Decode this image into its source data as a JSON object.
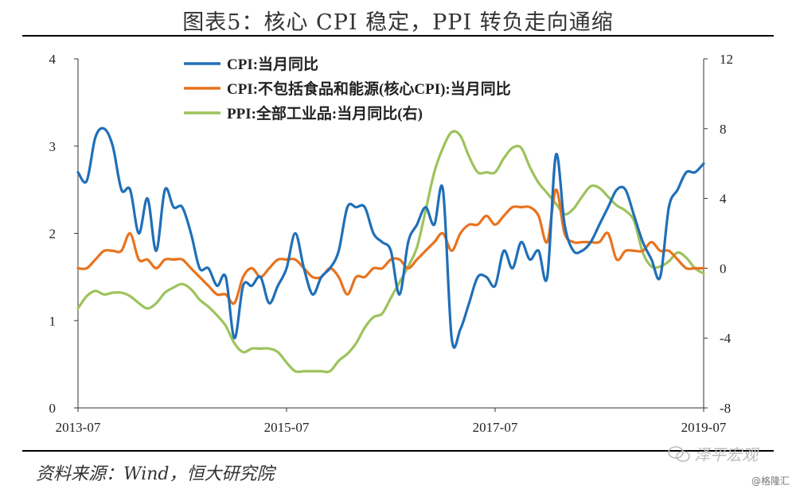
{
  "page": {
    "title": "图表5：核心 CPI 稳定，PPI 转负走向通缩",
    "source": "资料来源：Wind，恒大研究院",
    "watermark": "泽平宏观",
    "corner_mark": "@格隆汇"
  },
  "chart_data": {
    "type": "line",
    "x_tick_labels": [
      "2013-07",
      "2015-07",
      "2017-07",
      "2019-07"
    ],
    "y_left": {
      "range": [
        0,
        4
      ],
      "ticks": [
        "0",
        "1",
        "2",
        "3",
        "4"
      ]
    },
    "y_right": {
      "range": [
        -8,
        12
      ],
      "ticks": [
        "-8",
        "-4",
        "0",
        "4",
        "8",
        "12"
      ]
    },
    "x_range": [
      "2013-07",
      "2019-07"
    ],
    "legend_position": "top-left",
    "grid": false,
    "series": [
      {
        "name": "CPI:当月同比",
        "axis": "left",
        "color": "#1f6fb8",
        "points": [
          [
            "2013-07",
            2.7
          ],
          [
            "2013-08",
            2.6
          ],
          [
            "2013-09",
            3.1
          ],
          [
            "2013-10",
            3.2
          ],
          [
            "2013-11",
            3.0
          ],
          [
            "2013-12",
            2.5
          ],
          [
            "2014-01",
            2.5
          ],
          [
            "2014-02",
            2.0
          ],
          [
            "2014-03",
            2.4
          ],
          [
            "2014-04",
            1.8
          ],
          [
            "2014-05",
            2.5
          ],
          [
            "2014-06",
            2.3
          ],
          [
            "2014-07",
            2.3
          ],
          [
            "2014-08",
            2.0
          ],
          [
            "2014-09",
            1.6
          ],
          [
            "2014-10",
            1.6
          ],
          [
            "2014-11",
            1.4
          ],
          [
            "2014-12",
            1.5
          ],
          [
            "2015-01",
            0.8
          ],
          [
            "2015-02",
            1.4
          ],
          [
            "2015-03",
            1.4
          ],
          [
            "2015-04",
            1.5
          ],
          [
            "2015-05",
            1.2
          ],
          [
            "2015-06",
            1.4
          ],
          [
            "2015-07",
            1.6
          ],
          [
            "2015-08",
            2.0
          ],
          [
            "2015-09",
            1.6
          ],
          [
            "2015-10",
            1.3
          ],
          [
            "2015-11",
            1.5
          ],
          [
            "2015-12",
            1.6
          ],
          [
            "2016-01",
            1.8
          ],
          [
            "2016-02",
            2.3
          ],
          [
            "2016-03",
            2.3
          ],
          [
            "2016-04",
            2.3
          ],
          [
            "2016-05",
            2.0
          ],
          [
            "2016-06",
            1.9
          ],
          [
            "2016-07",
            1.8
          ],
          [
            "2016-08",
            1.3
          ],
          [
            "2016-09",
            1.9
          ],
          [
            "2016-10",
            2.1
          ],
          [
            "2016-11",
            2.3
          ],
          [
            "2016-12",
            2.1
          ],
          [
            "2017-01",
            2.5
          ],
          [
            "2017-02",
            0.8
          ],
          [
            "2017-03",
            0.9
          ],
          [
            "2017-04",
            1.2
          ],
          [
            "2017-05",
            1.5
          ],
          [
            "2017-06",
            1.5
          ],
          [
            "2017-07",
            1.4
          ],
          [
            "2017-08",
            1.8
          ],
          [
            "2017-09",
            1.6
          ],
          [
            "2017-10",
            1.9
          ],
          [
            "2017-11",
            1.7
          ],
          [
            "2017-12",
            1.8
          ],
          [
            "2018-01",
            1.5
          ],
          [
            "2018-02",
            2.9
          ],
          [
            "2018-03",
            2.1
          ],
          [
            "2018-04",
            1.8
          ],
          [
            "2018-05",
            1.8
          ],
          [
            "2018-06",
            1.9
          ],
          [
            "2018-07",
            2.1
          ],
          [
            "2018-08",
            2.3
          ],
          [
            "2018-09",
            2.5
          ],
          [
            "2018-10",
            2.5
          ],
          [
            "2018-11",
            2.2
          ],
          [
            "2018-12",
            1.9
          ],
          [
            "2019-01",
            1.7
          ],
          [
            "2019-02",
            1.5
          ],
          [
            "2019-03",
            2.3
          ],
          [
            "2019-04",
            2.5
          ],
          [
            "2019-05",
            2.7
          ],
          [
            "2019-06",
            2.7
          ],
          [
            "2019-07",
            2.8
          ]
        ]
      },
      {
        "name": "CPI:不包括食品和能源(核心CPI):当月同比",
        "axis": "left",
        "color": "#e8731e",
        "points": [
          [
            "2013-07",
            1.6
          ],
          [
            "2013-08",
            1.6
          ],
          [
            "2013-09",
            1.7
          ],
          [
            "2013-10",
            1.8
          ],
          [
            "2013-11",
            1.8
          ],
          [
            "2013-12",
            1.8
          ],
          [
            "2014-01",
            2.0
          ],
          [
            "2014-02",
            1.7
          ],
          [
            "2014-03",
            1.7
          ],
          [
            "2014-04",
            1.6
          ],
          [
            "2014-05",
            1.7
          ],
          [
            "2014-06",
            1.7
          ],
          [
            "2014-07",
            1.7
          ],
          [
            "2014-08",
            1.6
          ],
          [
            "2014-09",
            1.5
          ],
          [
            "2014-10",
            1.4
          ],
          [
            "2014-11",
            1.3
          ],
          [
            "2014-12",
            1.3
          ],
          [
            "2015-01",
            1.2
          ],
          [
            "2015-02",
            1.5
          ],
          [
            "2015-03",
            1.6
          ],
          [
            "2015-04",
            1.5
          ],
          [
            "2015-05",
            1.6
          ],
          [
            "2015-06",
            1.7
          ],
          [
            "2015-07",
            1.7
          ],
          [
            "2015-08",
            1.7
          ],
          [
            "2015-09",
            1.6
          ],
          [
            "2015-10",
            1.5
          ],
          [
            "2015-11",
            1.5
          ],
          [
            "2015-12",
            1.6
          ],
          [
            "2016-01",
            1.5
          ],
          [
            "2016-02",
            1.3
          ],
          [
            "2016-03",
            1.5
          ],
          [
            "2016-04",
            1.5
          ],
          [
            "2016-05",
            1.6
          ],
          [
            "2016-06",
            1.6
          ],
          [
            "2016-07",
            1.7
          ],
          [
            "2016-08",
            1.7
          ],
          [
            "2016-09",
            1.6
          ],
          [
            "2016-10",
            1.7
          ],
          [
            "2016-11",
            1.8
          ],
          [
            "2016-12",
            1.9
          ],
          [
            "2017-01",
            2.0
          ],
          [
            "2017-02",
            1.8
          ],
          [
            "2017-03",
            2.0
          ],
          [
            "2017-04",
            2.1
          ],
          [
            "2017-05",
            2.1
          ],
          [
            "2017-06",
            2.2
          ],
          [
            "2017-07",
            2.1
          ],
          [
            "2017-08",
            2.2
          ],
          [
            "2017-09",
            2.3
          ],
          [
            "2017-10",
            2.3
          ],
          [
            "2017-11",
            2.3
          ],
          [
            "2017-12",
            2.2
          ],
          [
            "2018-01",
            1.9
          ],
          [
            "2018-02",
            2.5
          ],
          [
            "2018-03",
            2.0
          ],
          [
            "2018-04",
            1.9
          ],
          [
            "2018-05",
            1.9
          ],
          [
            "2018-06",
            1.9
          ],
          [
            "2018-07",
            1.9
          ],
          [
            "2018-08",
            2.0
          ],
          [
            "2018-09",
            1.7
          ],
          [
            "2018-10",
            1.8
          ],
          [
            "2018-11",
            1.8
          ],
          [
            "2018-12",
            1.8
          ],
          [
            "2019-01",
            1.9
          ],
          [
            "2019-02",
            1.8
          ],
          [
            "2019-03",
            1.8
          ],
          [
            "2019-04",
            1.7
          ],
          [
            "2019-05",
            1.6
          ],
          [
            "2019-06",
            1.6
          ],
          [
            "2019-07",
            1.6
          ]
        ]
      },
      {
        "name": "PPI:全部工业品:当月同比(右)",
        "axis": "right",
        "color": "#9dc35c",
        "points": [
          [
            "2013-07",
            -2.3
          ],
          [
            "2013-08",
            -1.6
          ],
          [
            "2013-09",
            -1.3
          ],
          [
            "2013-10",
            -1.5
          ],
          [
            "2013-11",
            -1.4
          ],
          [
            "2013-12",
            -1.4
          ],
          [
            "2014-01",
            -1.6
          ],
          [
            "2014-02",
            -2.0
          ],
          [
            "2014-03",
            -2.3
          ],
          [
            "2014-04",
            -2.0
          ],
          [
            "2014-05",
            -1.4
          ],
          [
            "2014-06",
            -1.1
          ],
          [
            "2014-07",
            -0.9
          ],
          [
            "2014-08",
            -1.2
          ],
          [
            "2014-09",
            -1.8
          ],
          [
            "2014-10",
            -2.2
          ],
          [
            "2014-11",
            -2.7
          ],
          [
            "2014-12",
            -3.3
          ],
          [
            "2015-01",
            -4.3
          ],
          [
            "2015-02",
            -4.8
          ],
          [
            "2015-03",
            -4.6
          ],
          [
            "2015-04",
            -4.6
          ],
          [
            "2015-05",
            -4.6
          ],
          [
            "2015-06",
            -4.8
          ],
          [
            "2015-07",
            -5.4
          ],
          [
            "2015-08",
            -5.9
          ],
          [
            "2015-09",
            -5.9
          ],
          [
            "2015-10",
            -5.9
          ],
          [
            "2015-11",
            -5.9
          ],
          [
            "2015-12",
            -5.9
          ],
          [
            "2016-01",
            -5.3
          ],
          [
            "2016-02",
            -4.9
          ],
          [
            "2016-03",
            -4.3
          ],
          [
            "2016-04",
            -3.4
          ],
          [
            "2016-05",
            -2.8
          ],
          [
            "2016-06",
            -2.6
          ],
          [
            "2016-07",
            -1.7
          ],
          [
            "2016-08",
            -0.8
          ],
          [
            "2016-09",
            0.1
          ],
          [
            "2016-10",
            1.2
          ],
          [
            "2016-11",
            3.3
          ],
          [
            "2016-12",
            5.5
          ],
          [
            "2017-01",
            6.9
          ],
          [
            "2017-02",
            7.8
          ],
          [
            "2017-03",
            7.6
          ],
          [
            "2017-04",
            6.4
          ],
          [
            "2017-05",
            5.5
          ],
          [
            "2017-06",
            5.5
          ],
          [
            "2017-07",
            5.5
          ],
          [
            "2017-08",
            6.3
          ],
          [
            "2017-09",
            6.9
          ],
          [
            "2017-10",
            6.9
          ],
          [
            "2017-11",
            5.8
          ],
          [
            "2017-12",
            4.9
          ],
          [
            "2018-01",
            4.3
          ],
          [
            "2018-02",
            3.7
          ],
          [
            "2018-03",
            3.1
          ],
          [
            "2018-04",
            3.4
          ],
          [
            "2018-05",
            4.1
          ],
          [
            "2018-06",
            4.7
          ],
          [
            "2018-07",
            4.6
          ],
          [
            "2018-08",
            4.1
          ],
          [
            "2018-09",
            3.6
          ],
          [
            "2018-10",
            3.3
          ],
          [
            "2018-11",
            2.7
          ],
          [
            "2018-12",
            0.9
          ],
          [
            "2019-01",
            0.1
          ],
          [
            "2019-02",
            0.1
          ],
          [
            "2019-03",
            0.4
          ],
          [
            "2019-04",
            0.9
          ],
          [
            "2019-05",
            0.6
          ],
          [
            "2019-06",
            0.0
          ],
          [
            "2019-07",
            -0.3
          ]
        ]
      }
    ]
  }
}
